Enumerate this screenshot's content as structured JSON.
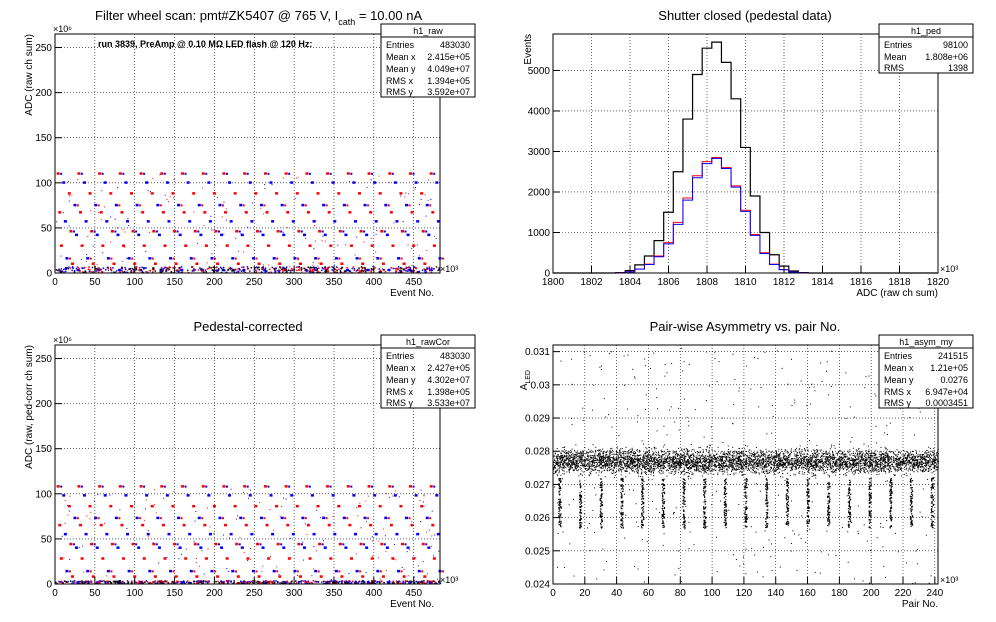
{
  "chart_data": [
    {
      "type": "scatter",
      "title_main": "Filter wheel scan: pmt#ZK5407 @   765 V, I",
      "title_sub": "cath",
      "title_tail": " = 10.00 nA",
      "annotation": "run 3839, PreAmp @ 0.10 MΩ LED flash @  120 Hz:",
      "xlabel": "Event No.",
      "ylabel": "ADC (raw ch sum)",
      "x_exponent": "×10³",
      "y_exponent": "×10⁶",
      "xlim": [
        0,
        483
      ],
      "ylim": [
        0,
        265
      ],
      "x_ticks": [
        0,
        50,
        100,
        150,
        200,
        250,
        300,
        350,
        400,
        450
      ],
      "y_ticks": [
        0,
        50,
        100,
        150,
        200,
        250
      ],
      "grid": true,
      "colors": {
        "series_a": "#ff0000",
        "series_b": "#0000ff",
        "series_c": "#000000"
      },
      "levels": [
        110,
        100,
        88,
        75,
        67,
        57,
        46,
        42,
        30,
        16,
        10,
        3
      ],
      "x_period": 26,
      "stats": {
        "name": "h1_raw",
        "rows": [
          {
            "label": "Entries",
            "value": "483030"
          },
          {
            "label": "Mean x",
            "value": "2.415e+05"
          },
          {
            "label": "Mean y",
            "value": "4.049e+07"
          },
          {
            "label": "RMS x",
            "value": "1.394e+05"
          },
          {
            "label": "RMS y",
            "value": "3.592e+07"
          }
        ]
      }
    },
    {
      "type": "line",
      "title": "Shutter closed (pedestal data)",
      "xlabel": "ADC (raw ch sum)",
      "ylabel": "Events",
      "x_exponent": "×10³",
      "xlim": [
        1800,
        1820
      ],
      "ylim": [
        0,
        5900
      ],
      "x_ticks": [
        1800,
        1802,
        1804,
        1806,
        1808,
        1810,
        1812,
        1814,
        1816,
        1818,
        1820
      ],
      "y_ticks": [
        0,
        1000,
        2000,
        3000,
        4000,
        5000
      ],
      "grid": true,
      "x": [
        1803.5,
        1804.0,
        1804.5,
        1805.0,
        1805.5,
        1806.0,
        1806.5,
        1807.0,
        1807.5,
        1808.0,
        1808.5,
        1809.0,
        1809.5,
        1810.0,
        1810.5,
        1811.0,
        1811.5,
        1812.0,
        1812.5,
        1813.0
      ],
      "series": [
        {
          "color": "#000000",
          "values": [
            10,
            60,
            200,
            420,
            800,
            1500,
            2500,
            3800,
            4900,
            5550,
            5700,
            5200,
            4300,
            3100,
            1900,
            1000,
            450,
            170,
            50,
            10
          ]
        },
        {
          "color": "#ff0000",
          "values": [
            5,
            30,
            100,
            220,
            420,
            750,
            1250,
            1850,
            2400,
            2750,
            2850,
            2600,
            2150,
            1550,
            950,
            500,
            220,
            85,
            25,
            5
          ]
        },
        {
          "color": "#0000ff",
          "values": [
            5,
            28,
            95,
            210,
            400,
            720,
            1200,
            1800,
            2350,
            2700,
            2830,
            2580,
            2120,
            1520,
            930,
            480,
            210,
            80,
            22,
            5
          ]
        }
      ],
      "stats": {
        "name": "h1_ped",
        "rows": [
          {
            "label": "Entries",
            "value": "98100"
          },
          {
            "label": "Mean",
            "value": "1.808e+06"
          },
          {
            "label": "RMS",
            "value": "1398"
          }
        ]
      }
    },
    {
      "type": "scatter",
      "title": "Pedestal-corrected",
      "xlabel": "Event No.",
      "ylabel": "ADC (raw, ped-corr ch sum)",
      "x_exponent": "×10³",
      "y_exponent": "×10⁶",
      "xlim": [
        0,
        483
      ],
      "ylim": [
        0,
        265
      ],
      "x_ticks": [
        0,
        50,
        100,
        150,
        200,
        250,
        300,
        350,
        400,
        450
      ],
      "y_ticks": [
        0,
        50,
        100,
        150,
        200,
        250
      ],
      "grid": true,
      "colors": {
        "series_a": "#ff0000",
        "series_b": "#0000ff",
        "series_c": "#000000"
      },
      "levels": [
        108,
        98,
        86,
        73,
        65,
        55,
        44,
        40,
        28,
        14,
        8,
        1.5
      ],
      "x_period": 26,
      "stats": {
        "name": "h1_rawCor",
        "rows": [
          {
            "label": "Entries",
            "value": "483030"
          },
          {
            "label": "Mean x",
            "value": "2.427e+05"
          },
          {
            "label": "Mean y",
            "value": "4.302e+07"
          },
          {
            "label": "RMS x",
            "value": "1.398e+05"
          },
          {
            "label": "RMS y",
            "value": "3.533e+07"
          }
        ]
      }
    },
    {
      "type": "scatter",
      "title": "Pair-wise Asymmetry vs. pair No.",
      "xlabel": "Pair No.",
      "ylabel": "A",
      "ylabel_sub": "LED",
      "x_exponent": "×10³",
      "xlim": [
        0,
        242
      ],
      "ylim": [
        0.024,
        0.0312
      ],
      "x_ticks": [
        0,
        20,
        40,
        60,
        80,
        100,
        120,
        140,
        160,
        180,
        200,
        220,
        240
      ],
      "y_ticks": [
        0.024,
        0.025,
        0.026,
        0.027,
        0.028,
        0.029,
        0.03,
        0.031
      ],
      "grid": true,
      "band": [
        0.0272,
        0.0282
      ],
      "spike_period": 13,
      "spike_low": 0.0257,
      "stats": {
        "name": "h1_asym_my",
        "rows": [
          {
            "label": "Entries",
            "value": "241515"
          },
          {
            "label": "Mean x",
            "value": "1.21e+05"
          },
          {
            "label": "Mean y",
            "value": "0.0276"
          },
          {
            "label": "RMS x",
            "value": "6.947e+04"
          },
          {
            "label": "RMS y",
            "value": "0.0003451"
          }
        ]
      }
    }
  ]
}
